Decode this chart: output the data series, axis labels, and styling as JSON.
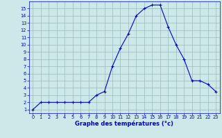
{
  "hours": [
    0,
    1,
    2,
    3,
    4,
    5,
    6,
    7,
    8,
    9,
    10,
    11,
    12,
    13,
    14,
    15,
    16,
    17,
    18,
    19,
    20,
    21,
    22,
    23
  ],
  "temperatures": [
    1,
    2,
    2,
    2,
    2,
    2,
    2,
    2,
    3,
    3.5,
    7,
    9.5,
    11.5,
    14,
    15,
    15.5,
    15.5,
    12.5,
    10,
    8,
    5,
    5,
    4.5,
    3.5
  ],
  "line_color": "#0000cc",
  "marker_color": "#0000cc",
  "bg_color": "#cce8e8",
  "grid_color": "#99bbbb",
  "xlabel": "Graphe des températures (°c)",
  "xlabel_color": "#0000cc",
  "ylim": [
    0.5,
    16
  ],
  "xlim": [
    -0.5,
    23.5
  ],
  "yticks": [
    1,
    2,
    3,
    4,
    5,
    6,
    7,
    8,
    9,
    10,
    11,
    12,
    13,
    14,
    15
  ],
  "xticks": [
    0,
    1,
    2,
    3,
    4,
    5,
    6,
    7,
    8,
    9,
    10,
    11,
    12,
    13,
    14,
    15,
    16,
    17,
    18,
    19,
    20,
    21,
    22,
    23
  ],
  "tick_color": "#0000cc",
  "axis_color": "#0000cc",
  "tick_fontsize": 4.8,
  "xlabel_fontsize": 6.0
}
